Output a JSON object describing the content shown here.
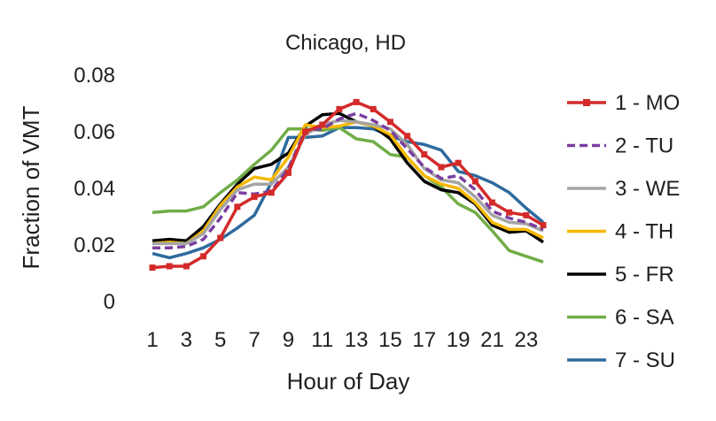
{
  "chart_data": {
    "type": "line",
    "title": "Chicago, HD",
    "xlabel": "Hour of Day",
    "ylabel": "Fraction of VMT",
    "xlim": [
      1,
      24
    ],
    "ylim": [
      0,
      0.08
    ],
    "yticks": [
      0,
      0.02,
      0.04,
      0.06,
      0.08
    ],
    "ytick_labels": [
      "0",
      "0.02",
      "0.04",
      "0.06",
      "0.08"
    ],
    "xticks": [
      1,
      3,
      5,
      7,
      9,
      11,
      13,
      15,
      17,
      19,
      21,
      23
    ],
    "xtick_labels": [
      "1",
      "3",
      "5",
      "7",
      "9",
      "11",
      "13",
      "15",
      "17",
      "19",
      "21",
      "23"
    ],
    "grid": false,
    "legend_position": "right",
    "x": [
      1,
      2,
      3,
      4,
      5,
      6,
      7,
      8,
      9,
      10,
      11,
      12,
      13,
      14,
      15,
      16,
      17,
      18,
      19,
      20,
      21,
      22,
      23,
      24
    ],
    "series": [
      {
        "name": "1 - MO",
        "color": "#d42a2a",
        "dash": "solid",
        "marker": "square",
        "values": [
          0.012,
          0.0125,
          0.0125,
          0.016,
          0.0225,
          0.0335,
          0.037,
          0.0385,
          0.0455,
          0.06,
          0.0625,
          0.068,
          0.0705,
          0.068,
          0.0635,
          0.0585,
          0.052,
          0.0475,
          0.049,
          0.0425,
          0.035,
          0.0315,
          0.0305,
          0.027
        ]
      },
      {
        "name": "2 - TU",
        "color": "#7b3fa0",
        "dash": "dashed",
        "marker": "none",
        "values": [
          0.019,
          0.019,
          0.0195,
          0.022,
          0.0295,
          0.0385,
          0.038,
          0.039,
          0.047,
          0.0605,
          0.061,
          0.0645,
          0.0665,
          0.064,
          0.0605,
          0.054,
          0.0475,
          0.0435,
          0.0445,
          0.0395,
          0.032,
          0.0295,
          0.028,
          0.0255
        ]
      },
      {
        "name": "3 - WE",
        "color": "#a5a5a5",
        "dash": "solid",
        "marker": "none",
        "values": [
          0.0205,
          0.0205,
          0.0205,
          0.024,
          0.0325,
          0.0395,
          0.0415,
          0.0415,
          0.0475,
          0.059,
          0.0625,
          0.064,
          0.0635,
          0.0625,
          0.061,
          0.0555,
          0.047,
          0.043,
          0.042,
          0.037,
          0.0305,
          0.028,
          0.0275,
          0.025
        ]
      },
      {
        "name": "4 - TH",
        "color": "#f5b800",
        "dash": "solid",
        "marker": "none",
        "values": [
          0.0205,
          0.021,
          0.0205,
          0.025,
          0.034,
          0.0405,
          0.044,
          0.043,
          0.051,
          0.0625,
          0.0615,
          0.062,
          0.0635,
          0.062,
          0.059,
          0.051,
          0.0445,
          0.0415,
          0.04,
          0.035,
          0.028,
          0.0255,
          0.0255,
          0.0225
        ]
      },
      {
        "name": "5 - FR",
        "color": "#000000",
        "dash": "solid",
        "marker": "none",
        "values": [
          0.0215,
          0.022,
          0.0215,
          0.0265,
          0.0345,
          0.0415,
          0.047,
          0.0485,
          0.0525,
          0.062,
          0.066,
          0.0665,
          0.0635,
          0.062,
          0.0575,
          0.049,
          0.0425,
          0.0395,
          0.0385,
          0.0345,
          0.027,
          0.0245,
          0.025,
          0.021
        ]
      },
      {
        "name": "6 - SA",
        "color": "#70ad47",
        "dash": "solid",
        "marker": "none",
        "values": [
          0.0315,
          0.032,
          0.032,
          0.0335,
          0.0385,
          0.043,
          0.0485,
          0.0535,
          0.061,
          0.061,
          0.0605,
          0.0615,
          0.0575,
          0.0565,
          0.052,
          0.051,
          0.0445,
          0.0405,
          0.0345,
          0.0315,
          0.025,
          0.018,
          0.016,
          0.014
        ]
      },
      {
        "name": "7 - SU",
        "color": "#2e6a9e",
        "dash": "solid",
        "marker": "none",
        "values": [
          0.017,
          0.0155,
          0.017,
          0.019,
          0.022,
          0.026,
          0.0305,
          0.042,
          0.058,
          0.058,
          0.0585,
          0.0615,
          0.0615,
          0.061,
          0.0585,
          0.0565,
          0.0555,
          0.0535,
          0.046,
          0.0445,
          0.042,
          0.0385,
          0.033,
          0.028
        ]
      }
    ]
  }
}
